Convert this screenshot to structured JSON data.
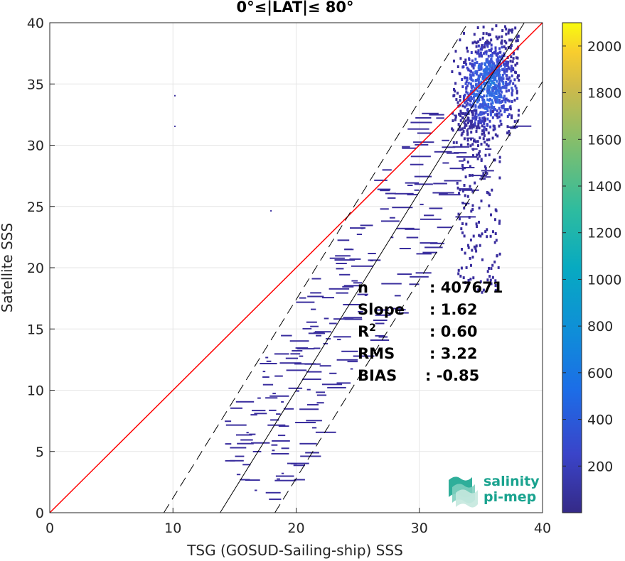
{
  "chart_data": {
    "type": "heatmap",
    "title": "0°≤|LAT|≤ 80°",
    "xlabel": "TSG (GOSUD-Sailing-ship) SSS",
    "ylabel": "Satellite SSS",
    "xlim": [
      0,
      40
    ],
    "ylim": [
      0,
      40
    ],
    "xticks": [
      0,
      10,
      20,
      30,
      40
    ],
    "yticks": [
      0,
      5,
      10,
      15,
      20,
      25,
      30,
      35,
      40
    ],
    "grid": true,
    "colorbar": {
      "ticks": [
        200,
        400,
        600,
        800,
        1000,
        1200,
        1400,
        1600,
        1800,
        2000
      ],
      "range": [
        0,
        2100
      ],
      "colormap": "parula"
    },
    "lines": [
      {
        "name": "one-to-one",
        "color": "#ff0000",
        "style": "solid",
        "slope": 1,
        "intercept": 0
      },
      {
        "name": "fit",
        "color": "#000000",
        "style": "solid",
        "slope": 1.62,
        "intercept": -22.4
      },
      {
        "name": "fit-upper",
        "color": "#000000",
        "style": "dashed",
        "slope": 1.62,
        "intercept": -15.0
      },
      {
        "name": "fit-lower",
        "color": "#000000",
        "style": "dashed",
        "slope": 1.62,
        "intercept": -29.6
      }
    ],
    "dense_region": {
      "x_center": 35.5,
      "y_center": 35.0,
      "peak_count": 800
    },
    "stats": [
      {
        "label": "n",
        "sup": "",
        "value": ": 407671"
      },
      {
        "label": "Slope",
        "sup": "",
        "value": ": 1.62"
      },
      {
        "label": "R",
        "sup": "2",
        "value": ": 0.60"
      },
      {
        "label": "RMS",
        "sup": "",
        "value": ": 3.22"
      },
      {
        "label": "BIAS",
        "sup": "",
        "value": ": -0.85"
      }
    ]
  },
  "logo": {
    "line1": "salinity",
    "line2": "pi-mep"
  }
}
